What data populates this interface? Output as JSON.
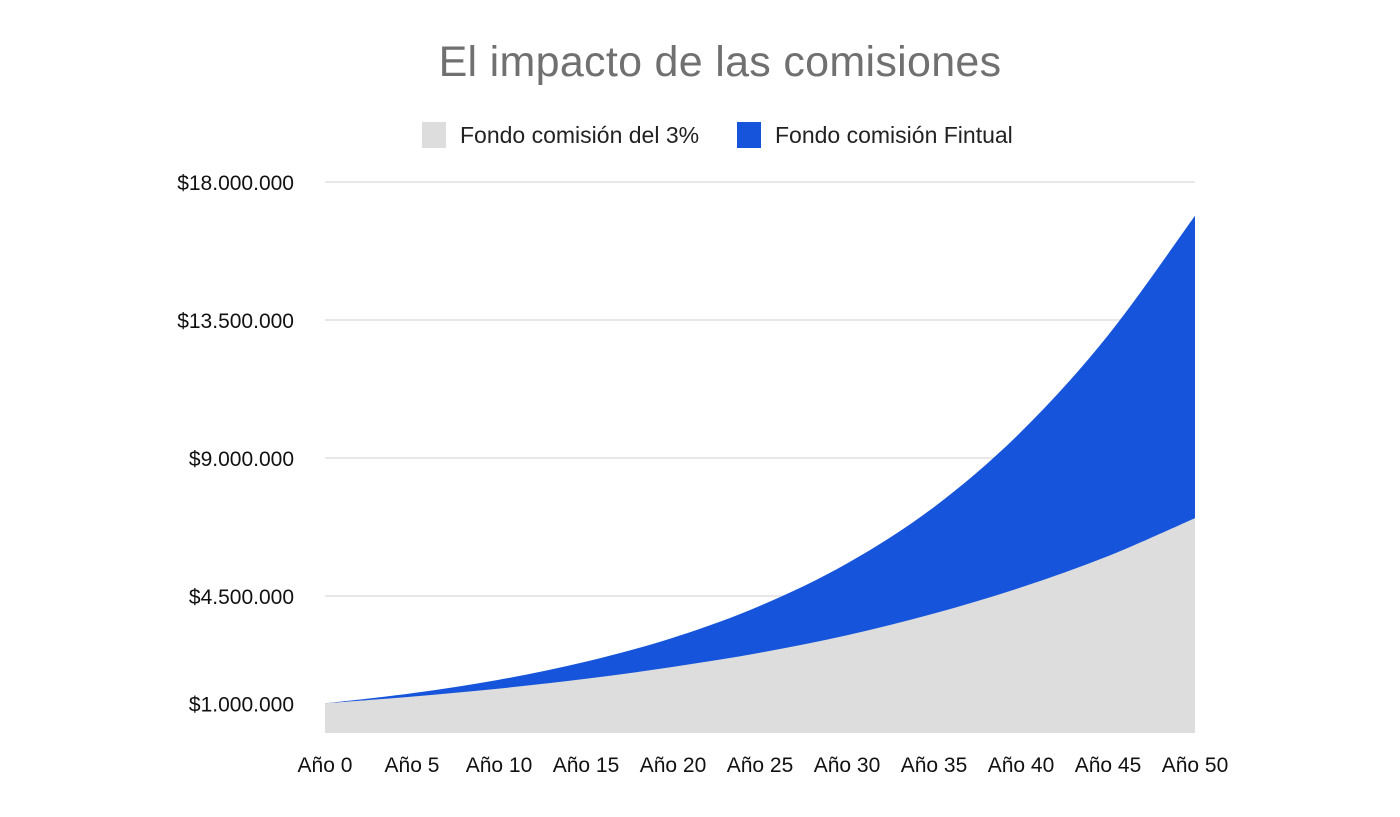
{
  "chart_data": {
    "type": "area",
    "title": "El impacto de las comisiones",
    "xlabel": "",
    "ylabel": "",
    "categories": [
      "Año 0",
      "Año 5",
      "Año 10",
      "Año 15",
      "Año 20",
      "Año 25",
      "Año 30",
      "Año 35",
      "Año 40",
      "Año 45",
      "Año 50"
    ],
    "x": [
      0,
      5,
      10,
      15,
      20,
      25,
      30,
      35,
      40,
      45,
      50
    ],
    "yticks": [
      1000000,
      4500000,
      9000000,
      13500000,
      18000000
    ],
    "ytick_labels": [
      "$1.000.000",
      "$4.500.000",
      "$9.000.000",
      "$13.500.000",
      "$18.000.000"
    ],
    "ylim": [
      0,
      18000000
    ],
    "grid": true,
    "legend_position": "top-center",
    "stacked": false,
    "series": [
      {
        "name": "Fondo comisión del 3%",
        "color": "#dddddd",
        "values": [
          1000000,
          1220000,
          1480000,
          1800000,
          2190000,
          2650000,
          3220000,
          3930000,
          4780000,
          5800000,
          7040000
        ]
      },
      {
        "name": "Fondo comisión Fintual",
        "color": "#1655db",
        "values": [
          1000000,
          1330000,
          1770000,
          2360000,
          3140000,
          4180000,
          5560000,
          7400000,
          9850000,
          13000000,
          16900000
        ]
      }
    ]
  }
}
